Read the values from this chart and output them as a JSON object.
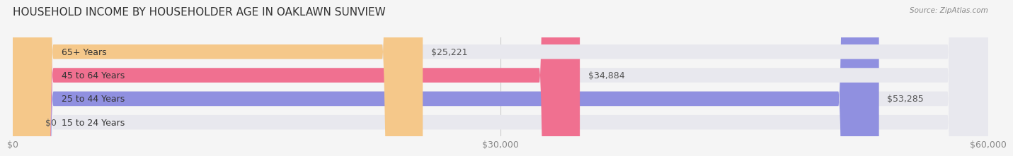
{
  "title": "HOUSEHOLD INCOME BY HOUSEHOLDER AGE IN OAKLAWN SUNVIEW",
  "source": "Source: ZipAtlas.com",
  "categories": [
    "15 to 24 Years",
    "25 to 44 Years",
    "45 to 64 Years",
    "65+ Years"
  ],
  "values": [
    0,
    53285,
    34884,
    25221
  ],
  "bar_colors": [
    "#7dd8d8",
    "#9090e0",
    "#f07090",
    "#f5c88a"
  ],
  "background_color": "#f0f0f0",
  "bar_bg_color": "#e8e8ee",
  "xlim": [
    0,
    60000
  ],
  "xticks": [
    0,
    30000,
    60000
  ],
  "xticklabels": [
    "$0",
    "$30,000",
    "$60,000"
  ],
  "label_fontsize": 9,
  "title_fontsize": 11,
  "value_label_color": "#555555",
  "category_label_color": "#333333"
}
